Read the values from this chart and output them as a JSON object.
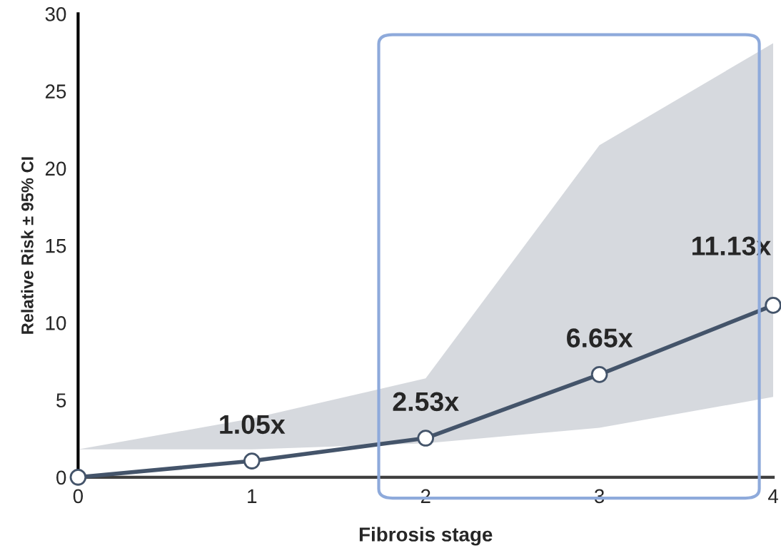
{
  "chart_data": {
    "type": "line",
    "xlabel": "Fibrosis stage",
    "ylabel": "Relative Risk ± 95% CI",
    "x": [
      0,
      1,
      2,
      3,
      4
    ],
    "xlim": [
      0,
      4
    ],
    "xticks": [
      0,
      1,
      2,
      3,
      4
    ],
    "ylim": [
      0,
      30
    ],
    "yticks": [
      0,
      5,
      10,
      15,
      20,
      25,
      30
    ],
    "series": [
      {
        "color": "#44546a",
        "values": [
          0,
          1.05,
          2.53,
          6.65,
          11.13
        ],
        "value_labels": [
          null,
          "1.05x",
          "2.53x",
          "6.65x",
          "11.13x"
        ],
        "marker": "circle",
        "line_style": "solid",
        "lower": [
          1.8,
          1.8,
          2.2,
          3.2,
          5.2
        ],
        "upper": [
          1.8,
          3.8,
          6.4,
          21.5,
          28.1
        ]
      }
    ],
    "grid": false,
    "legend": false
  }
}
